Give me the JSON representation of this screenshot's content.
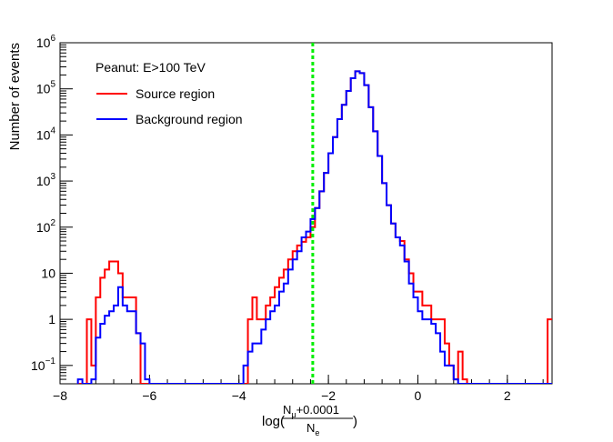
{
  "chart_data": {
    "type": "line",
    "style": "step-histogram",
    "ylabel": "Number of events",
    "xlabel": {
      "prefix": "log(",
      "numerator_base": "N",
      "numerator_sub": "μ",
      "numerator_suffix": "+0.0001",
      "denominator_base": "N",
      "denominator_sub": "e",
      "suffix": ")"
    },
    "xlim": [
      -8,
      3
    ],
    "ylim": [
      0.04,
      1000000
    ],
    "yscale": "log",
    "x_ticks": [
      -8,
      -6,
      -4,
      -2,
      0,
      2
    ],
    "x_tick_labels": [
      "−8",
      "−6",
      "−4",
      "−2",
      "0",
      "2"
    ],
    "y_ticks": [
      {
        "value": 0.1,
        "base": "10",
        "exp": "−1"
      },
      {
        "value": 1,
        "base": "1",
        "exp": ""
      },
      {
        "value": 10,
        "base": "10",
        "exp": ""
      },
      {
        "value": 100,
        "base": "10",
        "exp": "2"
      },
      {
        "value": 1000,
        "base": "10",
        "exp": "3"
      },
      {
        "value": 10000,
        "base": "10",
        "exp": "4"
      },
      {
        "value": 100000,
        "base": "10",
        "exp": "5"
      },
      {
        "value": 1000000,
        "base": "10",
        "exp": "6"
      }
    ],
    "legend": {
      "header": "Peanut: E>100 TeV",
      "placement": "top-left"
    },
    "cut_line": {
      "x": -2.35,
      "color": "#00ee00"
    },
    "bin_edges": [
      -7.6,
      -7.5,
      -7.4,
      -7.3,
      -7.2,
      -7.1,
      -7.0,
      -6.9,
      -6.8,
      -6.7,
      -6.6,
      -6.5,
      -6.4,
      -6.3,
      -6.2,
      -6.1,
      -6.0,
      -5.9,
      -5.8,
      -5.7,
      -5.6,
      -5.5,
      -5.4,
      -5.3,
      -5.2,
      -5.1,
      -5.0,
      -4.9,
      -4.8,
      -4.7,
      -4.6,
      -4.5,
      -4.4,
      -4.3,
      -4.2,
      -4.1,
      -4.0,
      -3.9,
      -3.8,
      -3.7,
      -3.6,
      -3.5,
      -3.4,
      -3.3,
      -3.2,
      -3.1,
      -3.0,
      -2.9,
      -2.8,
      -2.7,
      -2.6,
      -2.5,
      -2.4,
      -2.3,
      -2.2,
      -2.1,
      -2.0,
      -1.9,
      -1.8,
      -1.7,
      -1.6,
      -1.5,
      -1.4,
      -1.3,
      -1.2,
      -1.1,
      -1.0,
      -0.9,
      -0.8,
      -0.7,
      -0.6,
      -0.5,
      -0.4,
      -0.3,
      -0.2,
      -0.1,
      0.0,
      0.1,
      0.2,
      0.3,
      0.4,
      0.5,
      0.6,
      0.7,
      0.8,
      0.9,
      1.0,
      1.1,
      1.2,
      1.3,
      1.4,
      1.5,
      1.6,
      1.7,
      1.8,
      1.9,
      2.0,
      2.1,
      2.2,
      2.3,
      2.4,
      2.5,
      2.6,
      2.7,
      2.8,
      2.9,
      3.0
    ],
    "series": [
      {
        "name": "Source region",
        "color": "#ff0000",
        "values": [
          0,
          0,
          1,
          0.1,
          3,
          8,
          12,
          18,
          18,
          10,
          3,
          3,
          3,
          0.5,
          0,
          0,
          0,
          0,
          0,
          0,
          0,
          0,
          0,
          0,
          0,
          0,
          0,
          0,
          0,
          0,
          0,
          0,
          0,
          0,
          0,
          0,
          0,
          0,
          1,
          3,
          1,
          1,
          2,
          3,
          5,
          8,
          12,
          20,
          30,
          40,
          48,
          60,
          100,
          260,
          600,
          1500,
          4000,
          9000,
          22000,
          45000,
          90000,
          170000,
          240000,
          220000,
          120000,
          40000,
          12000,
          3500,
          900,
          300,
          120,
          60,
          50,
          20,
          10,
          4,
          4,
          2,
          2,
          1,
          1,
          1,
          0.3,
          0.1,
          0.05,
          0.2,
          0.05,
          0,
          0,
          0,
          0,
          0,
          0,
          0,
          0,
          0,
          0,
          0,
          0,
          0,
          0,
          0,
          0,
          0,
          0,
          1
        ]
      },
      {
        "name": "Background region",
        "color": "#0000ff",
        "values": [
          0.05,
          0,
          0,
          0.05,
          0.4,
          0.8,
          1.2,
          1.5,
          2,
          5,
          2,
          1.5,
          1.5,
          0.5,
          0.3,
          0.05,
          0,
          0,
          0,
          0,
          0,
          0,
          0,
          0,
          0,
          0,
          0,
          0,
          0,
          0,
          0,
          0,
          0,
          0,
          0,
          0,
          0,
          0.1,
          0.2,
          0.3,
          0.3,
          0.6,
          1,
          1.5,
          2,
          4,
          6,
          12,
          20,
          30,
          60,
          80,
          150,
          260,
          600,
          1500,
          4000,
          9000,
          22000,
          45000,
          90000,
          170000,
          240000,
          220000,
          120000,
          40000,
          12000,
          3500,
          900,
          300,
          120,
          60,
          40,
          18,
          6,
          3,
          1.5,
          1,
          1,
          0.8,
          0.5,
          0.2,
          0.1,
          0.1,
          0.05,
          0,
          0,
          0,
          0,
          0,
          0,
          0,
          0,
          0,
          0,
          0,
          0,
          0,
          0,
          0,
          0,
          0,
          0,
          0,
          0,
          0
        ]
      }
    ]
  }
}
